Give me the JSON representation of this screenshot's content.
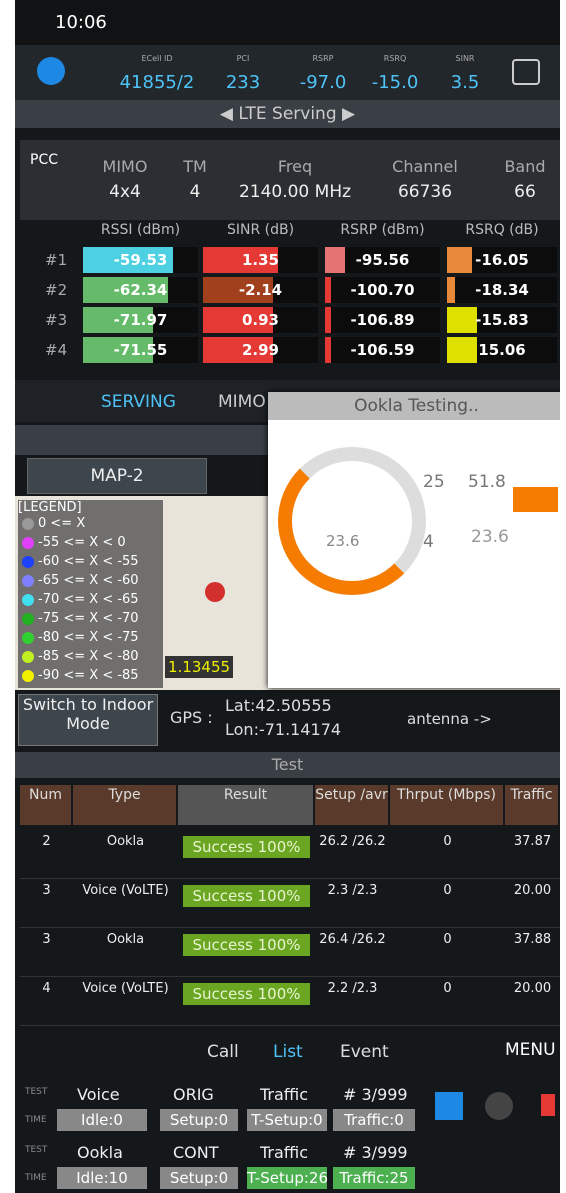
{
  "status": {
    "time": "10:06"
  },
  "header": {
    "labels": [
      "ECell ID",
      "PCI",
      "RSRP",
      "RSRQ",
      "SINR"
    ],
    "values": [
      "41855/2",
      "233",
      "-97.0",
      "-15.0",
      "3.5"
    ]
  },
  "serving_title": "LTE Serving",
  "pcc": {
    "label": "PCC",
    "columns": [
      {
        "label": "MIMO",
        "value": "4x4"
      },
      {
        "label": "TM",
        "value": "4"
      },
      {
        "label": "Freq",
        "value": "2140.00 MHz"
      },
      {
        "label": "Channel",
        "value": "66736"
      },
      {
        "label": "Band",
        "value": "66"
      }
    ]
  },
  "meas": {
    "headers": [
      "RSSI (dBm)",
      "SINR (dB)",
      "RSRP (dBm)",
      "RSRQ (dB)"
    ],
    "rows": [
      {
        "label": "#1",
        "values": [
          "-59.53",
          "1.35",
          "-95.56",
          "-16.05"
        ]
      },
      {
        "label": "#2",
        "values": [
          "-62.34",
          "-2.14",
          "-100.70",
          "-18.34"
        ]
      },
      {
        "label": "#3",
        "values": [
          "-71.97",
          "0.93",
          "-106.89",
          "-15.83"
        ]
      },
      {
        "label": "#4",
        "values": [
          "-71.55",
          "2.99",
          "-106.59",
          "15.06"
        ]
      }
    ]
  },
  "tabs": [
    "SERVING",
    "MIMO"
  ],
  "overlay": {
    "title": "Ookla Testing..",
    "speed": "23.6",
    "stats": [
      "25",
      "51.8",
      "4",
      "23.6"
    ]
  },
  "map": {
    "button": "MAP-2",
    "legend_title": "[LEGEND]",
    "legend": [
      "0 <= X",
      "-55 <= X < 0",
      "-60 <= X < -55",
      "-65 <= X < -60",
      "-70 <= X < -65",
      "-75 <= X < -70",
      "-80 <= X < -75",
      "-85 <= X < -80",
      "-90 <= X < -85"
    ],
    "coord": "1.13455"
  },
  "gps": {
    "button": "Switch to Indoor Mode",
    "label": "GPS :",
    "lat": "Lat:42.50555",
    "lon": "Lon:-71.14174",
    "antenna": "antenna ->"
  },
  "test": {
    "title": "Test",
    "headers": [
      "Num",
      "Type",
      "Result",
      "Setup /avr",
      "Thrput (Mbps)",
      "Traffic"
    ],
    "rows": [
      [
        "2",
        "Ookla",
        "Success 100%",
        "26.2 /26.2",
        "0",
        "37.87"
      ],
      [
        "3",
        "Voice (VoLTE)",
        "Success 100%",
        "2.3 /2.3",
        "0",
        "20.00"
      ],
      [
        "3",
        "Ookla",
        "Success 100%",
        "26.4 /26.2",
        "0",
        "37.88"
      ],
      [
        "4",
        "Voice (VoLTE)",
        "Success 100%",
        "2.2 /2.3",
        "0",
        "20.00"
      ]
    ]
  },
  "bottom_tabs": [
    "Call",
    "List",
    "Event"
  ],
  "menu": "MENU",
  "status_rows": [
    {
      "test": "TEST",
      "name": "Voice",
      "mode": "ORIG",
      "kind": "Traffic",
      "count": "# 3/999",
      "time": "TIME",
      "cells": [
        "Idle:0",
        "Setup:0",
        "T-Setup:0",
        "Traffic:0"
      ]
    },
    {
      "test": "TEST",
      "name": "Ookla",
      "mode": "CONT",
      "kind": "Traffic",
      "count": "# 3/999",
      "time": "TIME",
      "cells": [
        "Idle:10",
        "Setup:0",
        "T-Setup:26",
        "Traffic:25"
      ]
    }
  ]
}
